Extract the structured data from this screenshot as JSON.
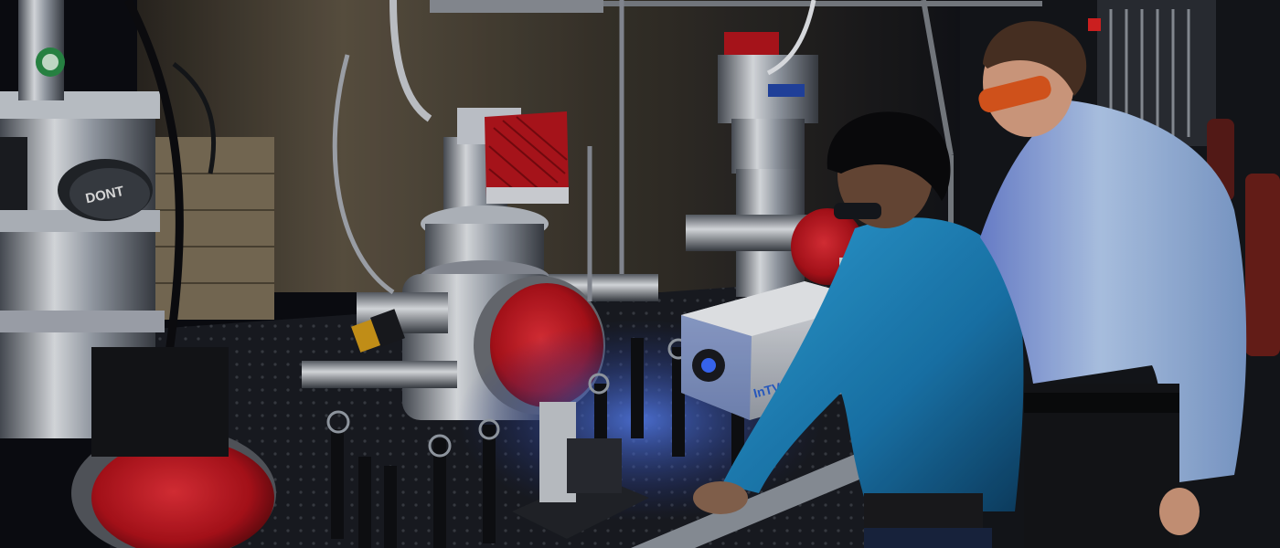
{
  "photo": {
    "equipment_labels": {
      "pump_brand": "DONT",
      "laser_brand": "InTV"
    },
    "colors": {
      "background_dark": "#0b0d12",
      "wall_tan": "#5d5343",
      "optical_table": "#1a1c22",
      "steel_light": "#d9dde3",
      "steel_mid": "#9aa1ab",
      "steel_dark": "#4a4f57",
      "flange_red": "#c8141e",
      "laser_box": "#d3d6dc",
      "shirt_teal": "#1f8fc9",
      "shirt_lightblue": "#a9c6ec",
      "goggles_orange": "#e1581e",
      "blue_glow": "#3b6cff",
      "brass_gold": "#d19a19"
    }
  }
}
